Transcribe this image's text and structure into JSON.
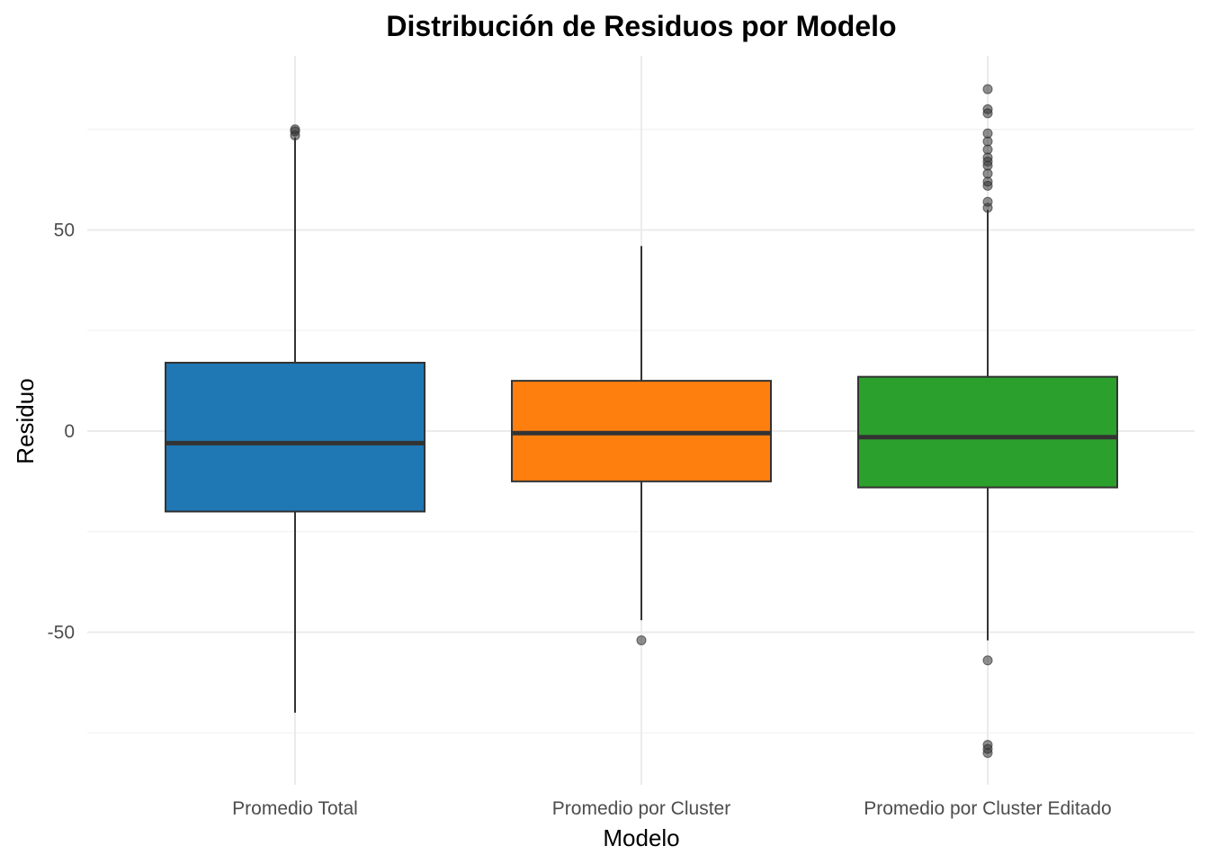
{
  "chart_data": {
    "type": "boxplot",
    "title": "Distribución de Residuos por Modelo",
    "xlabel": "Modelo",
    "ylabel": "Residuo",
    "ylim": [
      -83,
      94
    ],
    "y_ticks": [
      -50,
      0,
      50
    ],
    "grid": true,
    "legend": "none",
    "categories": [
      "Promedio Total",
      "Promedio por Cluster",
      "Promedio por Cluster Editado"
    ],
    "colors": [
      "#1f77b4",
      "#ff7f0e",
      "#2ca02c"
    ],
    "boxes": [
      {
        "name": "Promedio Total",
        "whisker_low": -70,
        "q1": -20,
        "median": -3,
        "q3": 17,
        "whisker_high": 73,
        "outliers": [
          73.5,
          74.5,
          75
        ]
      },
      {
        "name": "Promedio por Cluster",
        "whisker_low": -47,
        "q1": -12.5,
        "median": -0.5,
        "q3": 12.5,
        "whisker_high": 46,
        "outliers": [
          -52
        ]
      },
      {
        "name": "Promedio por Cluster Editado",
        "whisker_low": -52,
        "q1": -14,
        "median": -1.5,
        "q3": 13.5,
        "whisker_high": 55,
        "outliers": [
          85,
          80,
          79,
          74,
          72,
          70,
          68,
          67,
          66,
          64,
          62,
          61,
          57,
          55.5,
          -57,
          -78,
          -79,
          -80
        ]
      }
    ]
  }
}
